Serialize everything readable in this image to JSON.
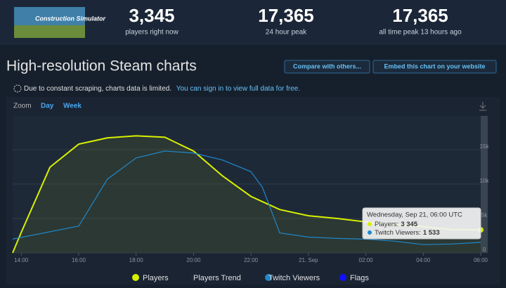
{
  "header": {
    "logo_text": "Construction Simulator",
    "stats": [
      {
        "value": "3,345",
        "label": "players right now"
      },
      {
        "value": "17,365",
        "label": "24 hour peak"
      },
      {
        "value": "17,365",
        "label": "all time peak 13 hours ago"
      }
    ]
  },
  "heading": "High-resolution Steam charts",
  "buttons": [
    "Compare with others...",
    "Embed this chart on your website"
  ],
  "notice": {
    "text": "Due to constant scraping, charts data is limited.",
    "link": "You can sign in to view full data for free."
  },
  "zoom": {
    "label": "Zoom",
    "options": [
      "Day",
      "Week"
    ]
  },
  "chart_data": {
    "type": "line",
    "xlim": [
      -0.3,
      16
    ],
    "xticks": [
      {
        "value": 0,
        "label": "14:00"
      },
      {
        "value": 2,
        "label": "16:00"
      },
      {
        "value": 4,
        "label": "18:00"
      },
      {
        "value": 6,
        "label": "20:00"
      },
      {
        "value": 8,
        "label": "22:00"
      },
      {
        "value": 10,
        "label": "21. Sep"
      },
      {
        "value": 12,
        "label": "02:00"
      },
      {
        "value": 14,
        "label": "04:00"
      },
      {
        "value": 16,
        "label": "06:00"
      }
    ],
    "ylim": [
      0,
      20000
    ],
    "yticks": [
      {
        "value": 0,
        "label": "0"
      },
      {
        "value": 5000,
        "label": "5k"
      },
      {
        "value": 10000,
        "label": "10k"
      },
      {
        "value": 15000,
        "label": "15k"
      }
    ],
    "grid": true,
    "series": [
      {
        "name": "Players",
        "color": "#d8f000",
        "fill": true,
        "x": [
          -0.3,
          0,
          1,
          2,
          3,
          4,
          5,
          6,
          7,
          8,
          9,
          10,
          11,
          12,
          13,
          14,
          15,
          16
        ],
        "values": [
          0,
          3000,
          12450,
          15800,
          16700,
          17000,
          16800,
          14800,
          11200,
          8200,
          6300,
          5400,
          5000,
          4500,
          4100,
          3800,
          3400,
          3345
        ]
      },
      {
        "name": "Twitch Viewers",
        "color": "#1f88cc",
        "fill": false,
        "x": [
          -0.3,
          2,
          3,
          4,
          5,
          6,
          7,
          8,
          8.4,
          9,
          10,
          11,
          12,
          13,
          14,
          15,
          16
        ],
        "values": [
          2000,
          3900,
          10700,
          13800,
          14800,
          14500,
          13500,
          11800,
          9500,
          2900,
          2300,
          2100,
          2000,
          1700,
          1200,
          1300,
          1533
        ]
      }
    ],
    "extra_legend": [
      {
        "name": "Players Trend",
        "color": "#1b2636"
      },
      {
        "name": "Flags",
        "color": "#1010ff"
      }
    ],
    "tooltip": {
      "title": "Wednesday, Sep 21, 06:00 UTC",
      "rows": [
        {
          "label": "Players:",
          "value": "3 345"
        },
        {
          "label": "Twitch Viewers:",
          "value": "1 533"
        }
      ]
    }
  }
}
